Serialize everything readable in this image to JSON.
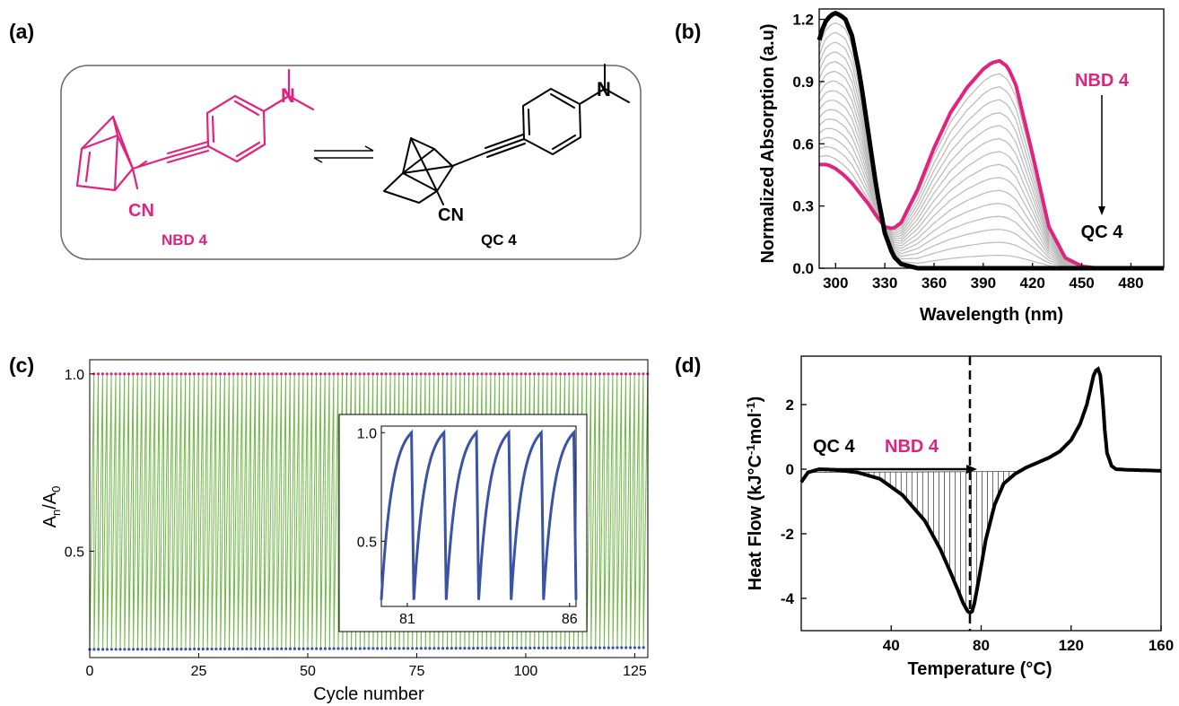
{
  "panel_labels": {
    "a": "(a)",
    "b": "(b)",
    "c": "(c)",
    "d": "(d)"
  },
  "scheme": {
    "nbd_label": "NBD 4",
    "qc_label": "QC 4",
    "cn_left": "CN",
    "cn_right": "CN",
    "n_left": "N",
    "n_right": "N"
  },
  "colors": {
    "magenta": "#e0237f",
    "green": "#72b84a",
    "blue": "#3b53a4",
    "gray": "#b9b9b9",
    "black": "#000000"
  },
  "chart_data": [
    {
      "id": "b",
      "type": "line",
      "xlabel": "Wavelength (nm)",
      "ylabel": "Normalized Absorption (a.u)",
      "xlim": [
        290,
        500
      ],
      "ylim": [
        0,
        1.25
      ],
      "xticks": [
        "300",
        "330",
        "360",
        "390",
        "420",
        "450",
        "480"
      ],
      "yticks": [
        "0.0",
        "0.3",
        "0.6",
        "0.9",
        "1.2"
      ],
      "annotations": {
        "top": "NBD 4",
        "bottom": "QC 4"
      },
      "series": [
        {
          "name": "NBD 4",
          "x": [
            290,
            295,
            300,
            305,
            310,
            315,
            320,
            325,
            330,
            335,
            340,
            350,
            360,
            370,
            380,
            390,
            395,
            400,
            405,
            410,
            420,
            430,
            440,
            450,
            460,
            480,
            500
          ],
          "values": [
            0.5,
            0.5,
            0.48,
            0.45,
            0.41,
            0.36,
            0.31,
            0.25,
            0.2,
            0.19,
            0.22,
            0.38,
            0.58,
            0.75,
            0.87,
            0.96,
            0.99,
            1.0,
            0.97,
            0.88,
            0.55,
            0.2,
            0.05,
            0.01,
            0.0,
            0.0,
            0.0
          ]
        },
        {
          "name": "QC 4",
          "x": [
            290,
            293,
            297,
            300,
            303,
            306,
            310,
            315,
            320,
            325,
            330,
            335,
            340,
            345,
            350,
            360,
            400,
            500
          ],
          "values": [
            1.1,
            1.18,
            1.22,
            1.23,
            1.22,
            1.2,
            1.12,
            0.92,
            0.65,
            0.38,
            0.17,
            0.06,
            0.02,
            0.01,
            0.0,
            0.0,
            0.0,
            0.0
          ]
        }
      ]
    },
    {
      "id": "c",
      "type": "line",
      "xlabel": "Cycle number",
      "ylabel": "An/A0",
      "xlim": [
        0,
        128
      ],
      "ylim": [
        0.2,
        1.04
      ],
      "xticks": [
        "0",
        "25",
        "50",
        "75",
        "100",
        "125"
      ],
      "yticks": [
        "0.5",
        "1.0"
      ],
      "cycles": 128,
      "max_value": 1.0,
      "min_value_start": 0.223,
      "min_value_end": 0.228,
      "inset": {
        "xlim": [
          80.2,
          86.2
        ],
        "ylim": [
          0.2,
          1.03
        ],
        "xticks": [
          "81",
          "86"
        ],
        "yticks": [
          "0.5",
          "1.0"
        ],
        "cycle_starts": [
          80.2,
          81.2,
          82.2,
          83.2,
          84.2,
          85.2
        ],
        "cycle_min": 0.23,
        "cycle_max": 1.0
      }
    },
    {
      "id": "d",
      "type": "line",
      "xlabel": "Temperature (°C)",
      "ylabel": "Heat Flow (kJ°C-1mol-1)",
      "xlim": [
        0,
        160
      ],
      "ylim": [
        -5,
        3.5
      ],
      "xticks": [
        "40",
        "80",
        "120",
        "160"
      ],
      "yticks": [
        "-4",
        "-2",
        "0",
        "2"
      ],
      "dashed_line_x": 75,
      "annotations": {
        "left": "QC 4",
        "right": "NBD 4"
      },
      "series": [
        {
          "name": "Heat flow",
          "x": [
            0,
            3,
            8,
            15,
            25,
            35,
            45,
            55,
            62,
            67,
            70,
            72,
            74,
            75,
            76,
            77,
            79,
            82,
            86,
            90,
            95,
            100,
            105,
            110,
            115,
            120,
            124,
            127,
            129,
            130,
            131,
            132,
            133,
            134,
            135,
            136,
            138,
            140,
            145,
            150,
            160
          ],
          "values": [
            -0.4,
            -0.1,
            0.0,
            -0.02,
            -0.1,
            -0.3,
            -0.8,
            -1.6,
            -2.5,
            -3.3,
            -3.8,
            -4.15,
            -4.4,
            -4.45,
            -4.4,
            -4.15,
            -3.4,
            -2.2,
            -1.1,
            -0.45,
            -0.15,
            0.05,
            0.2,
            0.35,
            0.55,
            0.9,
            1.4,
            2.0,
            2.6,
            2.9,
            3.05,
            3.1,
            2.9,
            2.2,
            1.2,
            0.5,
            0.1,
            0.0,
            -0.02,
            -0.03,
            -0.05
          ]
        }
      ]
    }
  ]
}
